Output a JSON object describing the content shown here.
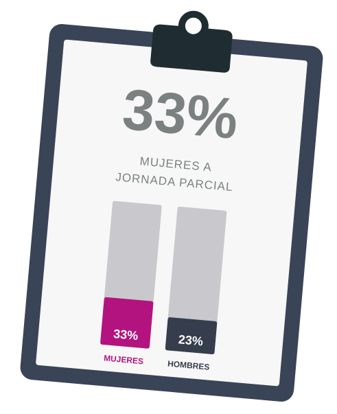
{
  "chart_data": {
    "type": "bar",
    "title": "33%",
    "subtitle": [
      "MUJERES A",
      "JORNADA PARCIAL"
    ],
    "categories": [
      "MUJERES",
      "HOMBRES"
    ],
    "values": [
      33,
      23
    ],
    "value_labels": [
      "33%",
      "23%"
    ],
    "colors": [
      "#b3137f",
      "#363d4d"
    ],
    "track_color": "#c9c9cd",
    "ylim": [
      0,
      100
    ]
  }
}
